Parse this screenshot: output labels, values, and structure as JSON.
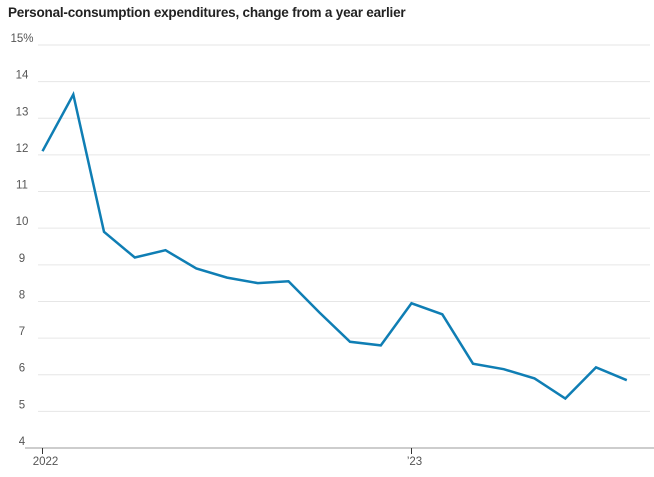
{
  "chart_data": {
    "type": "line",
    "title": "Personal-consumption expenditures, change from a year earlier",
    "xlabel": "",
    "ylabel": "",
    "x": [
      "Jan 2022",
      "Feb 2022",
      "Mar 2022",
      "Apr 2022",
      "May 2022",
      "Jun 2022",
      "Jul 2022",
      "Aug 2022",
      "Sep 2022",
      "Oct 2022",
      "Nov 2022",
      "Dec 2022",
      "Jan 2023",
      "Feb 2023",
      "Mar 2023",
      "Apr 2023",
      "May 2023",
      "Jun 2023",
      "Jul 2023",
      "Aug 2023"
    ],
    "series": [
      {
        "name": "Personal-consumption expenditures, % change from a year earlier",
        "values": [
          12.1,
          13.65,
          9.9,
          9.2,
          9.4,
          8.9,
          8.65,
          8.5,
          8.55,
          7.7,
          6.9,
          6.8,
          7.95,
          7.65,
          6.3,
          6.15,
          5.9,
          5.35,
          6.2,
          5.85
        ]
      }
    ],
    "ylim": [
      4,
      15
    ],
    "y_ticks": [
      15,
      14,
      13,
      12,
      11,
      10,
      9,
      8,
      7,
      6,
      5,
      4
    ],
    "y_tick_labels": [
      "15%",
      "14",
      "13",
      "12",
      "11",
      "10",
      "9",
      "8",
      "7",
      "6",
      "5",
      "4"
    ],
    "x_tick_month_indices": [
      0,
      12
    ],
    "x_tick_labels": [
      "2022",
      "’23"
    ],
    "grid": "horizontal",
    "legend": "none",
    "colors": {
      "line": "#0f7eb4",
      "grid": "#e6e6e6",
      "axis_line": "#9b9b9b",
      "tick": "#333333",
      "label": "#555555",
      "title": "#222222"
    }
  }
}
